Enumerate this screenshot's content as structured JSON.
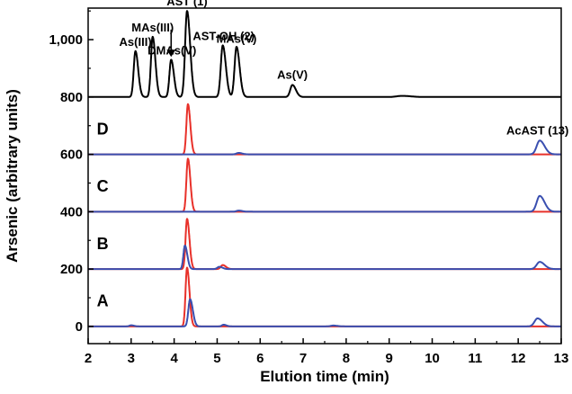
{
  "chart_data": {
    "type": "line",
    "xlabel": "Elution time (min)",
    "ylabel": "Arsenic (arbitrary units)",
    "xlim": [
      2,
      13
    ],
    "ylim": [
      -60,
      1110
    ],
    "x_ticks": [
      "2",
      "3",
      "4",
      "5",
      "6",
      "7",
      "8",
      "9",
      "10",
      "11",
      "12",
      "13"
    ],
    "y_ticks": [
      "0",
      "200",
      "400",
      "600",
      "800",
      "1,000"
    ],
    "y_tick_values": [
      0,
      200,
      400,
      600,
      800,
      1000
    ],
    "panel_labels": [
      "A",
      "B",
      "C",
      "D"
    ],
    "annotations": [
      {
        "text": "As(III)",
        "x": 3.1,
        "y": 960
      },
      {
        "text": "MAs(III)",
        "x": 3.5,
        "y": 1010
      },
      {
        "text": "DMAs(V)",
        "x": 3.95,
        "y": 930
      },
      {
        "text": "AST (1)",
        "x": 4.3,
        "y": 1100
      },
      {
        "text": "AST-OH (2)",
        "x": 5.15,
        "y": 980
      },
      {
        "text": "MAs(V)",
        "x": 5.45,
        "y": 970
      },
      {
        "text": "As(V)",
        "x": 6.75,
        "y": 845
      },
      {
        "text": "AcAST (13)",
        "x": 12.45,
        "y": 650
      }
    ],
    "series": [
      {
        "group": "standards",
        "color": "#000000",
        "baseline": 800,
        "peaks": [
          {
            "x": 3.1,
            "height": 160,
            "width": 0.04
          },
          {
            "x": 3.5,
            "height": 210,
            "width": 0.04
          },
          {
            "x": 3.93,
            "height": 130,
            "width": 0.04
          },
          {
            "x": 4.3,
            "height": 300,
            "width": 0.045
          },
          {
            "x": 5.13,
            "height": 180,
            "width": 0.045
          },
          {
            "x": 5.45,
            "height": 175,
            "width": 0.045
          },
          {
            "x": 6.75,
            "height": 42,
            "width": 0.05
          },
          {
            "x": 9.3,
            "height": 4,
            "width": 0.12
          }
        ]
      },
      {
        "group": "D",
        "color": "#e8312a",
        "baseline": 600,
        "peaks": [
          {
            "x": 4.32,
            "height": 175,
            "width": 0.035
          }
        ]
      },
      {
        "group": "D",
        "color": "#3a4fb0",
        "baseline": 600,
        "peaks": [
          {
            "x": 5.5,
            "height": 5,
            "width": 0.05
          },
          {
            "x": 12.5,
            "height": 48,
            "width": 0.07
          }
        ]
      },
      {
        "group": "C",
        "color": "#e8312a",
        "baseline": 400,
        "peaks": [
          {
            "x": 4.32,
            "height": 185,
            "width": 0.035
          }
        ]
      },
      {
        "group": "C",
        "color": "#3a4fb0",
        "baseline": 400,
        "peaks": [
          {
            "x": 5.5,
            "height": 4,
            "width": 0.05
          },
          {
            "x": 12.5,
            "height": 55,
            "width": 0.07
          }
        ]
      },
      {
        "group": "B",
        "color": "#e8312a",
        "baseline": 200,
        "peaks": [
          {
            "x": 4.3,
            "height": 175,
            "width": 0.035
          },
          {
            "x": 5.13,
            "height": 14,
            "width": 0.045
          }
        ]
      },
      {
        "group": "B",
        "color": "#3a4fb0",
        "baseline": 200,
        "peaks": [
          {
            "x": 4.25,
            "height": 82,
            "width": 0.035
          },
          {
            "x": 5.05,
            "height": 8,
            "width": 0.045
          },
          {
            "x": 12.5,
            "height": 25,
            "width": 0.07
          }
        ]
      },
      {
        "group": "A",
        "color": "#e8312a",
        "baseline": 0,
        "peaks": [
          {
            "x": 4.3,
            "height": 205,
            "width": 0.035
          }
        ]
      },
      {
        "group": "A",
        "color": "#3a4fb0",
        "baseline": 0,
        "peaks": [
          {
            "x": 3.0,
            "height": 4,
            "width": 0.04
          },
          {
            "x": 4.37,
            "height": 95,
            "width": 0.04
          },
          {
            "x": 5.15,
            "height": 6,
            "width": 0.04
          },
          {
            "x": 7.7,
            "height": 3,
            "width": 0.06
          },
          {
            "x": 12.45,
            "height": 28,
            "width": 0.07
          }
        ]
      }
    ]
  }
}
